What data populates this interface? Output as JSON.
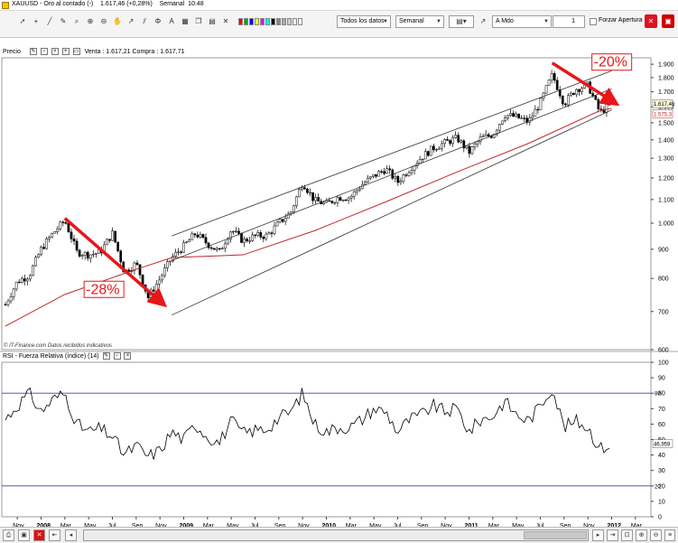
{
  "window": {
    "title": "XAUUSD - Oro al contado (-)    1.617,46 (+0,28%)    Semanal  10:48"
  },
  "toolbar": {
    "data_range": "Todos los datos",
    "period": "Semanal",
    "order_type": "A Mdo",
    "quantity": "1",
    "force_open_label": "Forzar Apertura",
    "icons": [
      "cursor-icon",
      "crosshair-icon",
      "line-draw-icon",
      "pencil-icon",
      "magnify-icon",
      "zoom-in-icon",
      "zoom-out-icon",
      "hand-icon",
      "arrow-icon",
      "channel-icon",
      "fibonacci-icon",
      "text-icon",
      "grid-icon",
      "copy-icon",
      "paste-icon",
      "delete-icon"
    ],
    "swatch_colors": [
      "#ff0000",
      "#00aa00",
      "#0000ff",
      "#ffff00",
      "#ff00ff",
      "#00ffff",
      "#000000",
      "#888888",
      "#aaaaaa",
      "#cccccc",
      "#eeeeee",
      "#ffffff"
    ]
  },
  "price_panel": {
    "label": "Precio",
    "quote": "Venta : 1.617,21 Compra : 1.617,71",
    "watermark": "© IT-Finance.com  Datos recibidos indicativos",
    "last_price": "1.617,46",
    "ma_value": "1.575,3",
    "y_ticks": [
      "1.900",
      "1.800",
      "1.700",
      "1.600",
      "1.500",
      "1.400",
      "1.300",
      "1.200",
      "1.100",
      "1.000",
      "900",
      "800",
      "700",
      "600"
    ],
    "annotations": [
      "-28%",
      "-20%"
    ]
  },
  "rsi_panel": {
    "label": "RSI - Fuerza Relativa (índice) (14)",
    "last_value": "46,959",
    "upper_level": "80",
    "lower_level": "20",
    "y_ticks": [
      "100",
      "90",
      "80",
      "70",
      "60",
      "50",
      "40",
      "30",
      "20",
      "10",
      "0"
    ]
  },
  "x_axis": {
    "labels": [
      "Nov",
      "2008",
      "Mar",
      "May",
      "Jul",
      "Sep",
      "Nov",
      "2009",
      "Mar",
      "May",
      "Jul",
      "Sep",
      "Nov",
      "2010",
      "Mar",
      "May",
      "Jul",
      "Sep",
      "Nov",
      "2011",
      "Mar",
      "May",
      "Jul",
      "Sep",
      "Nov",
      "2012",
      "Mar"
    ],
    "bold": [
      "2008",
      "2009",
      "2010",
      "2011",
      "2012"
    ]
  },
  "chart_data": [
    {
      "type": "candlestick",
      "title": "Precio",
      "x_range": [
        "2007-10",
        "2012-03"
      ],
      "ylim": [
        600,
        1950
      ],
      "y_ticks": [
        600,
        700,
        800,
        900,
        1000,
        1100,
        1200,
        1300,
        1400,
        1500,
        1600,
        1700,
        1800,
        1900
      ],
      "close_series": [
        [
          "2007-10",
          720
        ],
        [
          "2007-11",
          790
        ],
        [
          "2007-12",
          810
        ],
        [
          "2008-01",
          900
        ],
        [
          "2008-02",
          960
        ],
        [
          "2008-03",
          1010
        ],
        [
          "2008-04",
          890
        ],
        [
          "2008-05",
          880
        ],
        [
          "2008-06",
          890
        ],
        [
          "2008-07",
          960
        ],
        [
          "2008-08",
          820
        ],
        [
          "2008-09",
          850
        ],
        [
          "2008-10",
          740
        ],
        [
          "2008-11",
          800
        ],
        [
          "2008-12",
          870
        ],
        [
          "2009-01",
          910
        ],
        [
          "2009-02",
          960
        ],
        [
          "2009-03",
          920
        ],
        [
          "2009-04",
          890
        ],
        [
          "2009-05",
          975
        ],
        [
          "2009-06",
          930
        ],
        [
          "2009-07",
          950
        ],
        [
          "2009-08",
          950
        ],
        [
          "2009-09",
          1000
        ],
        [
          "2009-10",
          1045
        ],
        [
          "2009-11",
          1180
        ],
        [
          "2009-12",
          1095
        ],
        [
          "2010-01",
          1080
        ],
        [
          "2010-02",
          1110
        ],
        [
          "2010-03",
          1110
        ],
        [
          "2010-04",
          1170
        ],
        [
          "2010-05",
          1210
        ],
        [
          "2010-06",
          1245
        ],
        [
          "2010-07",
          1180
        ],
        [
          "2010-08",
          1245
        ],
        [
          "2010-09",
          1305
        ],
        [
          "2010-10",
          1355
        ],
        [
          "2010-11",
          1385
        ],
        [
          "2010-12",
          1410
        ],
        [
          "2011-01",
          1330
        ],
        [
          "2011-02",
          1410
        ],
        [
          "2011-03",
          1430
        ],
        [
          "2011-04",
          1550
        ],
        [
          "2011-05",
          1535
        ],
        [
          "2011-06",
          1505
        ],
        [
          "2011-07",
          1625
        ],
        [
          "2011-08",
          1820
        ],
        [
          "2011-09",
          1620
        ],
        [
          "2011-10",
          1720
        ],
        [
          "2011-11",
          1745
        ],
        [
          "2011-12",
          1565
        ],
        [
          "2012-01",
          1617
        ]
      ],
      "moving_average": [
        [
          "2007-10",
          660
        ],
        [
          "2008-03",
          750
        ],
        [
          "2008-09",
          830
        ],
        [
          "2008-12",
          870
        ],
        [
          "2009-06",
          880
        ],
        [
          "2009-12",
          970
        ],
        [
          "2010-06",
          1090
        ],
        [
          "2010-12",
          1230
        ],
        [
          "2011-06",
          1380
        ],
        [
          "2011-12",
          1575
        ],
        [
          "2012-01",
          1590
        ]
      ],
      "channel_lines": [
        {
          "name": "upper",
          "from": [
            "2008-12",
            950
          ],
          "to": [
            "2012-01",
            1850
          ]
        },
        {
          "name": "middle",
          "from": [
            "2008-12",
            860
          ],
          "to": [
            "2012-01",
            1720
          ]
        },
        {
          "name": "lower",
          "from": [
            "2008-12",
            690
          ],
          "to": [
            "2012-01",
            1580
          ]
        }
      ],
      "arrows": [
        {
          "label": "-28%",
          "from": [
            "2008-03",
            1020
          ],
          "to": [
            "2008-11",
            730
          ],
          "color": "#e8161a"
        },
        {
          "label": "-20%",
          "from": [
            "2011-08",
            1910
          ],
          "to": [
            "2012-01",
            1640
          ],
          "color": "#e8161a"
        }
      ],
      "last_price": 1617.46
    },
    {
      "type": "line",
      "title": "RSI - Fuerza Relativa (índice) (14)",
      "ylim": [
        0,
        100
      ],
      "y_ticks": [
        0,
        10,
        20,
        30,
        40,
        50,
        60,
        70,
        80,
        90,
        100
      ],
      "levels": [
        20,
        80
      ],
      "series": [
        {
          "values": [
            [
              "2007-10",
              63
            ],
            [
              "2007-11",
              72
            ],
            [
              "2007-12",
              80
            ],
            [
              "2008-01",
              68
            ],
            [
              "2008-02",
              76
            ],
            [
              "2008-03",
              80
            ],
            [
              "2008-04",
              60
            ],
            [
              "2008-05",
              55
            ],
            [
              "2008-06",
              57
            ],
            [
              "2008-07",
              52
            ],
            [
              "2008-08",
              40
            ],
            [
              "2008-09",
              46
            ],
            [
              "2008-10",
              39
            ],
            [
              "2008-11",
              43
            ],
            [
              "2008-12",
              55
            ],
            [
              "2009-01",
              50
            ],
            [
              "2009-02",
              60
            ],
            [
              "2009-03",
              52
            ],
            [
              "2009-04",
              48
            ],
            [
              "2009-05",
              62
            ],
            [
              "2009-06",
              54
            ],
            [
              "2009-07",
              56
            ],
            [
              "2009-08",
              57
            ],
            [
              "2009-09",
              64
            ],
            [
              "2009-10",
              68
            ],
            [
              "2009-11",
              80
            ],
            [
              "2009-12",
              60
            ],
            [
              "2010-01",
              55
            ],
            [
              "2010-02",
              58
            ],
            [
              "2010-03",
              58
            ],
            [
              "2010-04",
              63
            ],
            [
              "2010-05",
              70
            ],
            [
              "2010-06",
              68
            ],
            [
              "2010-07",
              55
            ],
            [
              "2010-08",
              63
            ],
            [
              "2010-09",
              66
            ],
            [
              "2010-10",
              72
            ],
            [
              "2010-11",
              68
            ],
            [
              "2010-12",
              70
            ],
            [
              "2011-01",
              55
            ],
            [
              "2011-02",
              63
            ],
            [
              "2011-03",
              65
            ],
            [
              "2011-04",
              75
            ],
            [
              "2011-05",
              66
            ],
            [
              "2011-06",
              62
            ],
            [
              "2011-07",
              72
            ],
            [
              "2011-08",
              84
            ],
            [
              "2011-09",
              58
            ],
            [
              "2011-10",
              62
            ],
            [
              "2011-11",
              58
            ],
            [
              "2011-12",
              44
            ],
            [
              "2012-01",
              47
            ]
          ]
        }
      ],
      "last_value": 46.959
    }
  ]
}
